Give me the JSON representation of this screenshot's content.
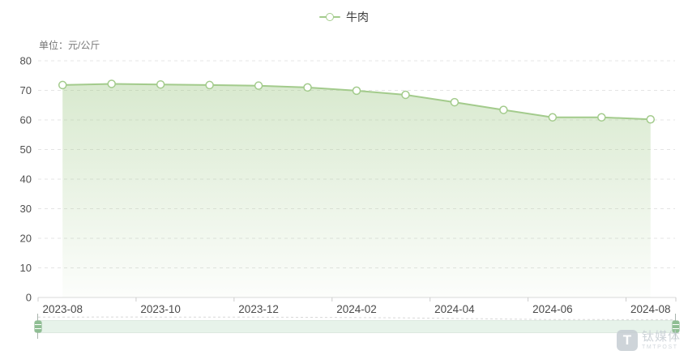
{
  "legend": {
    "label": "牛肉"
  },
  "unit_label": "单位：元/公斤",
  "watermark": {
    "logo_letter": "T",
    "name": "钛媒体",
    "subname": "TMTPOST"
  },
  "colors": {
    "line": "#a3cb8c",
    "marker_fill": "#ffffff",
    "area_top": "rgba(163,203,140,0.42)",
    "area_bottom": "rgba(163,203,140,0.03)",
    "grid": "#e4e4e4",
    "axis_line": "#d9d9d9",
    "tick": "#cccccc",
    "slider_shadow": "#d8d8d8"
  },
  "chart_data": {
    "type": "area",
    "title": "",
    "series": [
      {
        "name": "牛肉",
        "values": [
          71.8,
          72.2,
          72.0,
          71.8,
          71.6,
          71.0,
          69.9,
          68.5,
          66.0,
          63.4,
          60.9,
          60.9,
          60.2
        ]
      }
    ],
    "x": [
      "2023-08",
      "2023-09",
      "2023-10",
      "2023-11",
      "2023-12",
      "2024-01",
      "2024-02",
      "2024-03",
      "2024-04",
      "2024-05",
      "2024-06",
      "2024-07",
      "2024-08"
    ],
    "x_tick_labels": [
      "2023-08",
      "2023-10",
      "2023-12",
      "2024-02",
      "2024-04",
      "2024-06",
      "2024-08"
    ],
    "x_label_every": 2,
    "y_ticks": [
      0,
      10,
      20,
      30,
      40,
      50,
      60,
      70,
      80
    ],
    "ylim": [
      0,
      80
    ],
    "ylabel": "元/公斤",
    "xlabel": "",
    "grid": true,
    "grid_style": "dashed",
    "legend_position": "top-center",
    "has_datazoom_slider": true
  }
}
